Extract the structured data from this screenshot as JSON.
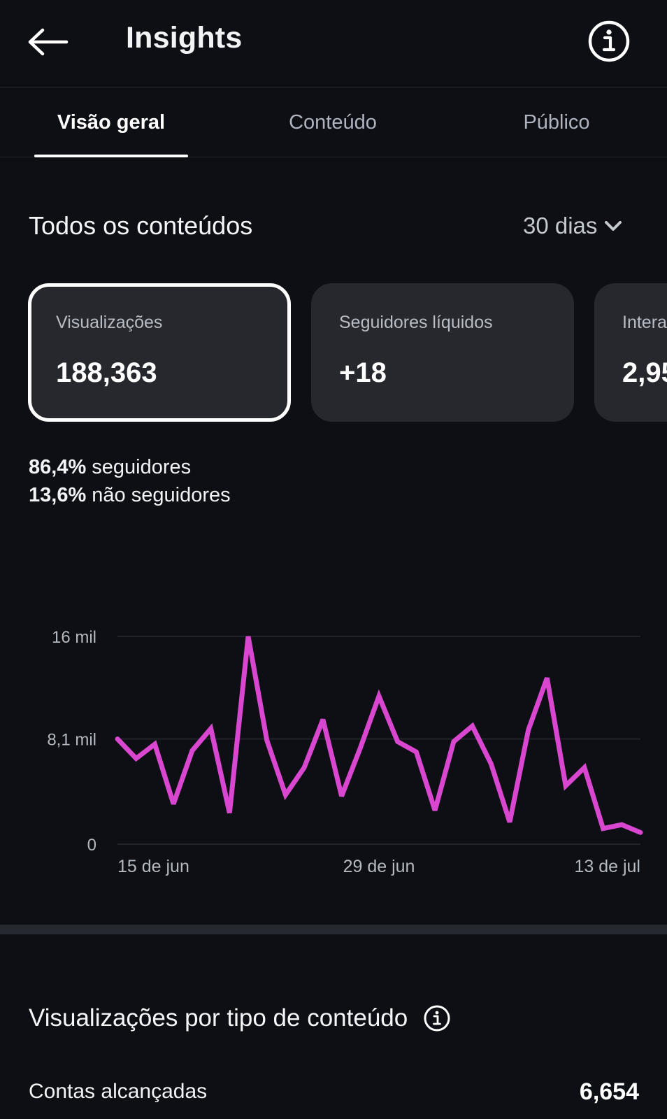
{
  "header": {
    "title": "Insights"
  },
  "tabs": [
    {
      "label": "Visão geral",
      "active": true
    },
    {
      "label": "Conteúdo",
      "active": false
    },
    {
      "label": "Público",
      "active": false
    }
  ],
  "section": {
    "title": "Todos os conteúdos",
    "period": "30 dias"
  },
  "cards": [
    {
      "label": "Visualizações",
      "value": "188,363",
      "selected": true
    },
    {
      "label": "Seguidores líquidos",
      "value": "+18",
      "selected": false
    },
    {
      "label": "Interações",
      "value": "2,95",
      "selected": false
    }
  ],
  "split": {
    "followers_pct": "86,4%",
    "followers_label": "seguidores",
    "non_followers_pct": "13,6%",
    "non_followers_label": "não seguidores"
  },
  "chart_data": {
    "type": "line",
    "title": "",
    "xlabel": "",
    "ylabel": "",
    "y_tick_labels": [
      "0",
      "8,1 mil",
      "16 mil"
    ],
    "y_ticks": [
      0,
      8100,
      16000
    ],
    "ylim": [
      0,
      16000
    ],
    "x_tick_labels": [
      "15 de jun",
      "29 de jun",
      "13 de jul"
    ],
    "x_tick_index": [
      0,
      14,
      28
    ],
    "grid": true,
    "series_color": "#d946d0",
    "series": [
      {
        "name": "",
        "values": [
          8100,
          6600,
          7700,
          3100,
          7200,
          8900,
          2400,
          16000,
          8000,
          3800,
          5900,
          9600,
          3700,
          7400,
          11400,
          7900,
          7100,
          2600,
          7900,
          9100,
          6200,
          1700,
          8800,
          12800,
          4500,
          5900,
          1200,
          1500,
          900
        ]
      }
    ]
  },
  "views_by_type": {
    "title": "Visualizações por tipo de conteúdo"
  },
  "reach": {
    "label": "Contas alcançadas",
    "value": "6,654"
  },
  "colors": {
    "background": "#0d0f14",
    "card": "#26282e",
    "accent_line": "#d946d0"
  }
}
